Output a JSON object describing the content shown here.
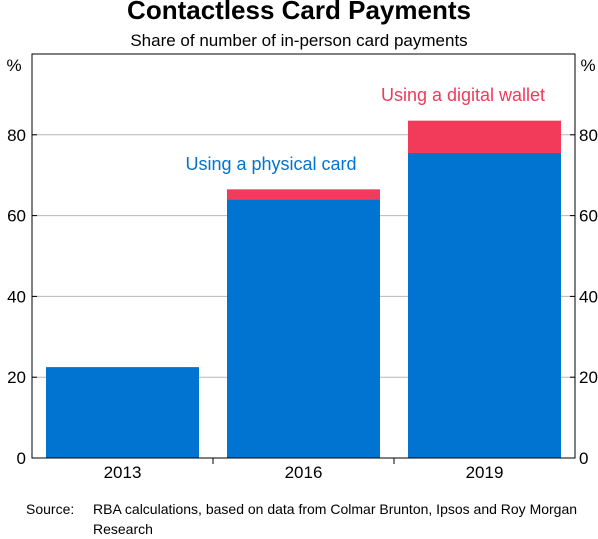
{
  "title": "Contactless Card Payments",
  "subtitle": "Share of number of in-person card payments",
  "source_label": "Source:",
  "source_text": "RBA calculations, based on data from Colmar Brunton, Ipsos and Roy Morgan Research",
  "colors": {
    "physical": "#0074d0",
    "wallet": "#f23a5b",
    "grid": "#b7b7b7",
    "axis": "#000000"
  },
  "chart_data": {
    "type": "bar",
    "stacked": true,
    "categories": [
      "2013",
      "2016",
      "2019"
    ],
    "series": [
      {
        "name": "Using a physical card",
        "values": [
          22.5,
          64,
          75.5
        ],
        "color": "#0074d0"
      },
      {
        "name": "Using a digital wallet",
        "values": [
          0,
          2.5,
          8
        ],
        "color": "#f23a5b"
      }
    ],
    "ylabel_left": "%",
    "ylabel_right": "%",
    "ylim": [
      0,
      100
    ],
    "yticks": [
      0,
      20,
      40,
      60,
      80
    ],
    "grid": true
  }
}
